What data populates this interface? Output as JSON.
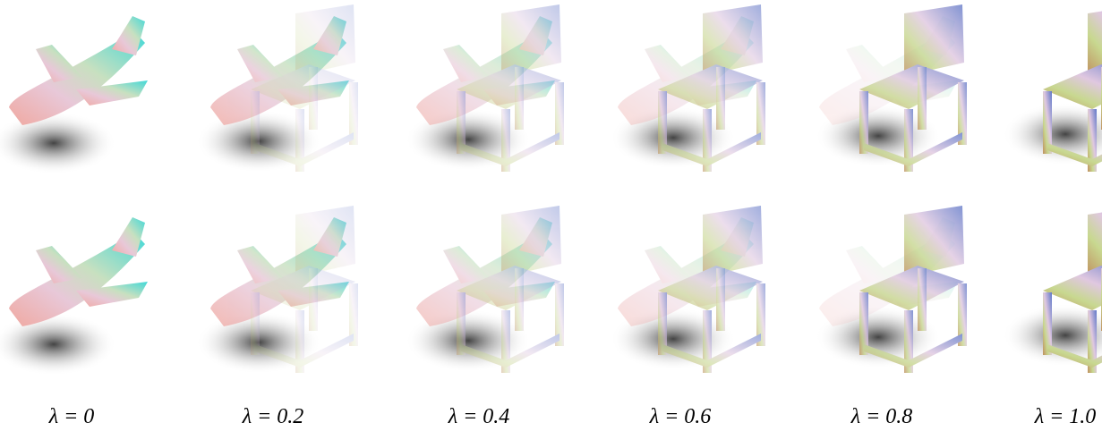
{
  "figure": {
    "labels": [
      "λ = 0",
      "λ = 0.2",
      "λ = 0.4",
      "λ = 0.6",
      "λ = 0.8",
      "λ = 1.0"
    ]
  }
}
